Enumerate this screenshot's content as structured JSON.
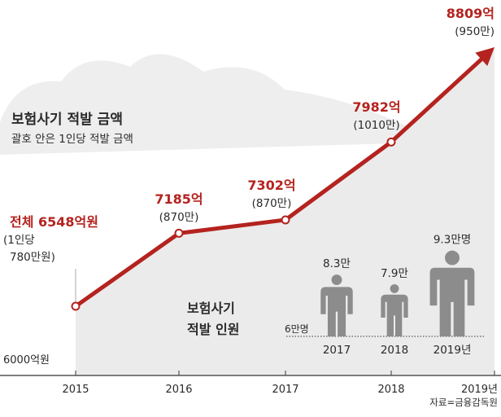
{
  "chart_data": {
    "type": "line",
    "title": "보험사기 적발 금액",
    "subtitle": "괄호 안은 1인당 적발 금액",
    "baseline_label": "6000억원",
    "x": [
      "2015",
      "2016",
      "2017",
      "2018",
      "2019년"
    ],
    "values": [
      6548,
      7185,
      7302,
      7982,
      8809
    ],
    "ylim": [
      6000,
      8809
    ],
    "point_labels": [
      "전체 6548억원",
      "7185억",
      "7302억",
      "7982억",
      "8809억"
    ],
    "per_person_labels": [
      "(1인당\n780만원)",
      "(870만)",
      "(870만)",
      "(1010만)",
      "(950만)"
    ],
    "line_color": "#b4231f",
    "inset": {
      "type": "bar",
      "title_line1": "보험사기",
      "title_line2": "적발 인원",
      "base_label": "6만명",
      "categories": [
        "2017",
        "2018",
        "2019년"
      ],
      "values": [
        8.3,
        7.9,
        9.3
      ],
      "value_labels": [
        "8.3만",
        "7.9만",
        "9.3만명"
      ],
      "figure_color": "#8c8c8c"
    },
    "source": "자료=금융감독원"
  }
}
